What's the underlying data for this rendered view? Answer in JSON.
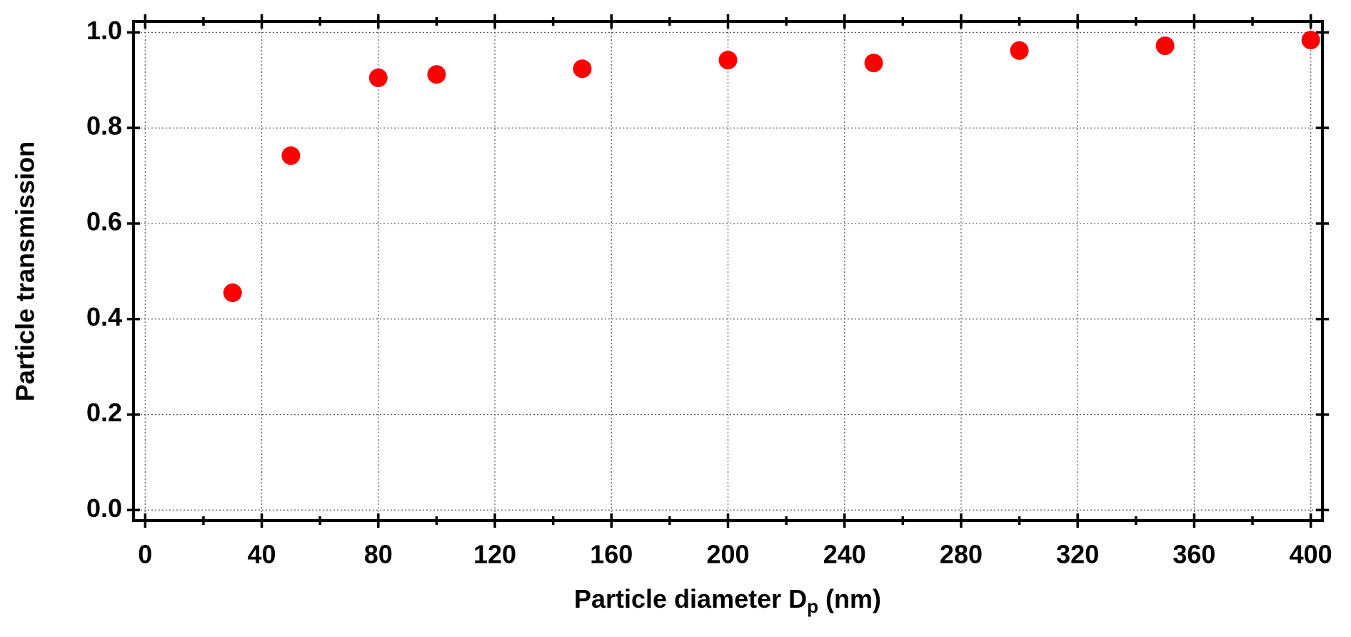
{
  "chart_data": {
    "type": "scatter",
    "xlabel": "Particle diameter D",
    "xlabel_subscript": "p",
    "xlabel_unit": "(nm)",
    "ylabel": "Particle transmission",
    "x": [
      30,
      50,
      80,
      100,
      150,
      200,
      250,
      300,
      350,
      400
    ],
    "series": [
      {
        "color": "#ff0000",
        "values": [
          0.455,
          0.742,
          0.905,
          0.912,
          0.924,
          0.942,
          0.936,
          0.962,
          0.972,
          0.984
        ]
      }
    ],
    "xlim": [
      -4,
      404
    ],
    "ylim": [
      -0.022,
      1.023
    ],
    "xticks": [
      0,
      40,
      80,
      120,
      160,
      200,
      240,
      280,
      320,
      360,
      400
    ],
    "xminorticks": [
      20,
      60,
      100,
      140,
      180,
      220,
      260,
      300,
      340,
      380
    ],
    "yticks": [
      {
        "value": 0,
        "label": "0.0"
      },
      0.2,
      0.4,
      0.6,
      0.8,
      {
        "value": 1,
        "label": "1.0"
      }
    ],
    "grid": true
  }
}
